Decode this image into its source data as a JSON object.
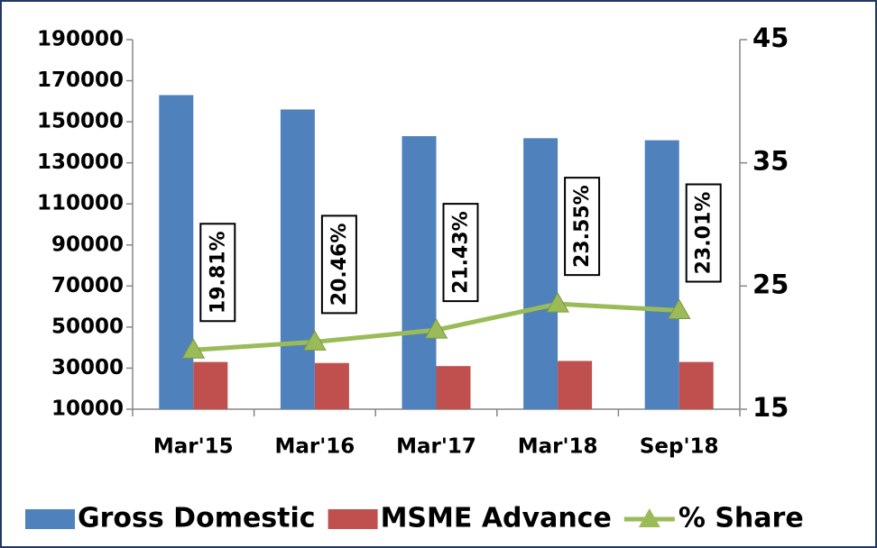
{
  "chart_data": {
    "type": "bar",
    "categories": [
      "Mar'15",
      "Mar'16",
      "Mar'17",
      "Mar'18",
      "Sep'18"
    ],
    "series": [
      {
        "name": "Gross Domestic",
        "color": "#4f81bd",
        "values": [
          163000,
          156000,
          143000,
          142000,
          141000
        ]
      },
      {
        "name": "MSME Advance",
        "color": "#c0504d",
        "values": [
          33000,
          32500,
          31000,
          33500,
          33000
        ]
      },
      {
        "name": "% Share",
        "color": "#9bbb59",
        "type": "line",
        "axis": "y2",
        "values": [
          19.81,
          20.46,
          21.43,
          23.55,
          23.01
        ],
        "value_labels": [
          "19.81%",
          "20.46%",
          "21.43%",
          "23.55%",
          "23.01%"
        ]
      }
    ],
    "ylim": [
      10000,
      190000
    ],
    "yticks": [
      10000,
      30000,
      50000,
      70000,
      90000,
      110000,
      130000,
      150000,
      170000,
      190000
    ],
    "y2lim": [
      15,
      45
    ],
    "y2ticks": [
      15,
      25,
      35,
      45
    ],
    "legend": "bottom"
  }
}
